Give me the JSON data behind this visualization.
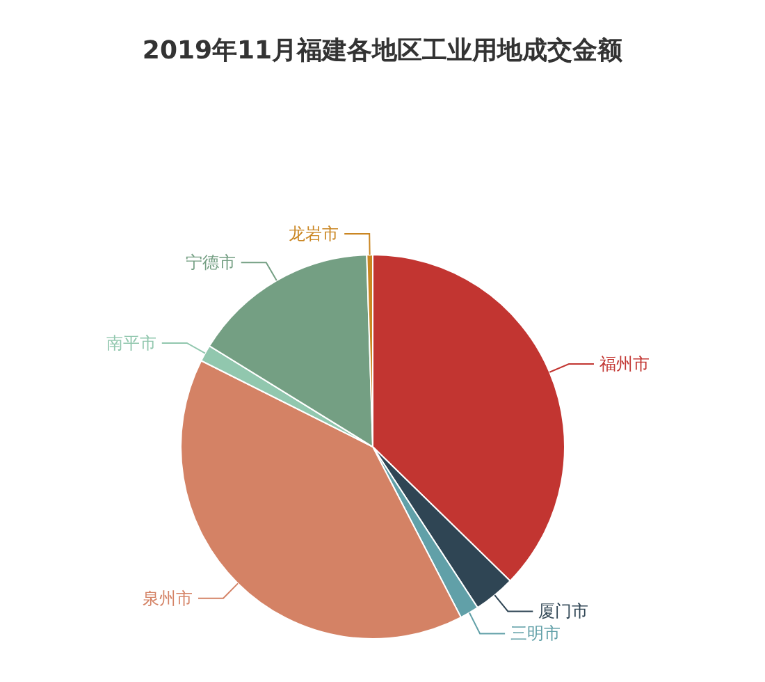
{
  "chart_data": {
    "type": "pie",
    "title": "2019年11月福建各地区工业用地成交金额",
    "categories": [
      "福州市",
      "厦门市",
      "三明市",
      "泉州市",
      "南平市",
      "宁德市",
      "龙岩市"
    ],
    "values": [
      37.3,
      3.5,
      1.6,
      40.0,
      1.4,
      15.7,
      0.5
    ],
    "colors": [
      "#c23531",
      "#2f4554",
      "#61a0a8",
      "#d48265",
      "#91c7ae",
      "#749f83",
      "#ca8622"
    ]
  }
}
